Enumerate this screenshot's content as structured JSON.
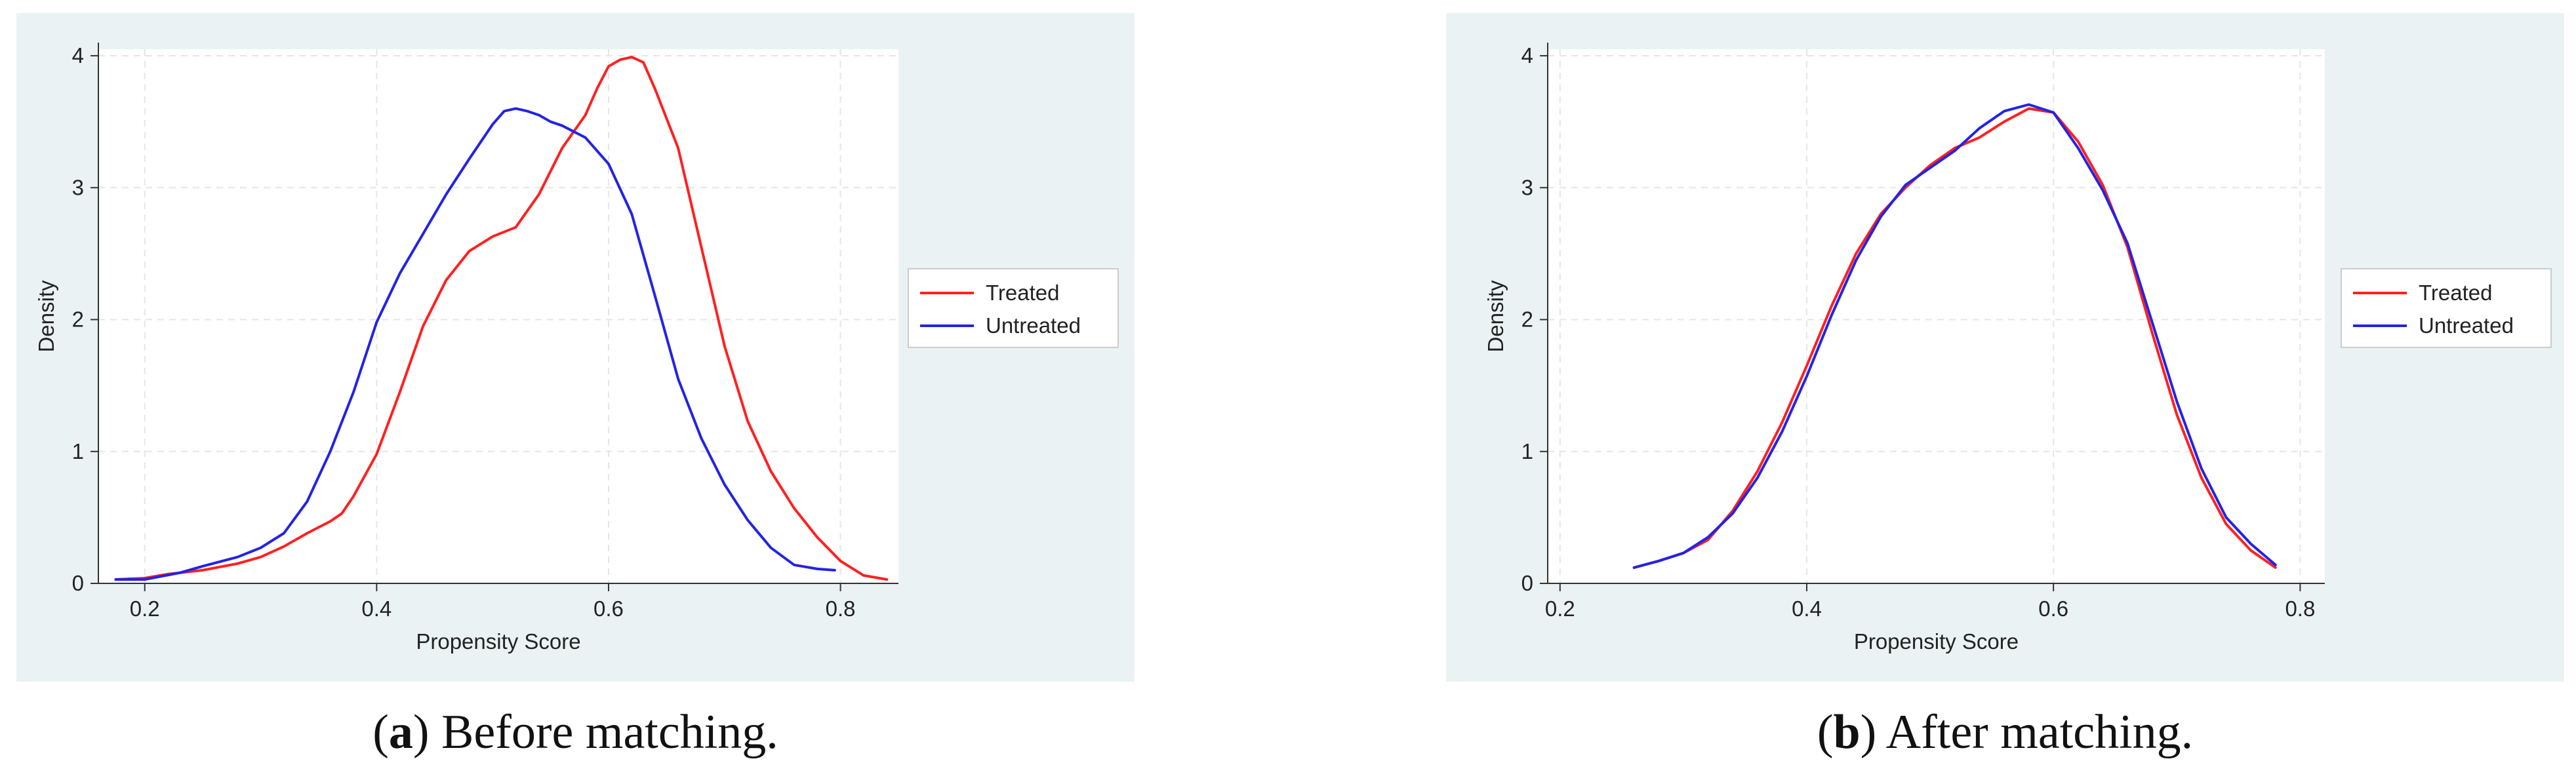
{
  "colors": {
    "treated": "#ff2020",
    "untreated": "#2323e6",
    "panel_bg": "#eaf2f3",
    "grid": "#e6e6e6"
  },
  "chart_data": [
    {
      "type": "line",
      "title": "",
      "xlabel": "Propensity Score",
      "ylabel": "Density",
      "xlim": [
        0.16,
        0.85
      ],
      "ylim": [
        0,
        4.05
      ],
      "xticks": [
        0.2,
        0.4,
        0.6,
        0.8
      ],
      "xtick_labels": [
        "0.2",
        "0.4",
        "0.6",
        "0.8"
      ],
      "yticks": [
        0,
        1,
        2,
        3,
        4
      ],
      "ytick_labels": [
        "0",
        "1",
        "2",
        "3",
        "4"
      ],
      "grid": true,
      "legend_position": "right",
      "caption_label": "a",
      "caption_text": ") Before matching.",
      "caption_open": "(",
      "series": [
        {
          "name": "Treated",
          "color": "#ff2020",
          "x": [
            0.175,
            0.2,
            0.22,
            0.25,
            0.28,
            0.3,
            0.32,
            0.34,
            0.36,
            0.37,
            0.38,
            0.4,
            0.42,
            0.44,
            0.46,
            0.48,
            0.5,
            0.52,
            0.54,
            0.56,
            0.58,
            0.59,
            0.6,
            0.61,
            0.62,
            0.63,
            0.64,
            0.66,
            0.68,
            0.7,
            0.72,
            0.74,
            0.76,
            0.78,
            0.8,
            0.82,
            0.84
          ],
          "y": [
            0.03,
            0.04,
            0.07,
            0.1,
            0.15,
            0.2,
            0.28,
            0.38,
            0.47,
            0.53,
            0.66,
            0.98,
            1.45,
            1.95,
            2.3,
            2.52,
            2.63,
            2.7,
            2.95,
            3.3,
            3.55,
            3.75,
            3.92,
            3.97,
            3.99,
            3.95,
            3.75,
            3.3,
            2.55,
            1.8,
            1.23,
            0.85,
            0.57,
            0.35,
            0.17,
            0.06,
            0.03
          ]
        },
        {
          "name": "Untreated",
          "color": "#2323e6",
          "x": [
            0.175,
            0.2,
            0.23,
            0.25,
            0.28,
            0.3,
            0.32,
            0.34,
            0.36,
            0.38,
            0.4,
            0.42,
            0.44,
            0.46,
            0.48,
            0.5,
            0.51,
            0.52,
            0.53,
            0.54,
            0.55,
            0.56,
            0.58,
            0.6,
            0.62,
            0.64,
            0.66,
            0.68,
            0.7,
            0.72,
            0.74,
            0.76,
            0.78,
            0.795
          ],
          "y": [
            0.03,
            0.03,
            0.08,
            0.13,
            0.2,
            0.27,
            0.38,
            0.62,
            1.0,
            1.45,
            1.98,
            2.35,
            2.65,
            2.95,
            3.22,
            3.48,
            3.58,
            3.6,
            3.58,
            3.55,
            3.5,
            3.47,
            3.38,
            3.18,
            2.8,
            2.18,
            1.55,
            1.1,
            0.75,
            0.48,
            0.27,
            0.14,
            0.11,
            0.1
          ]
        }
      ]
    },
    {
      "type": "line",
      "title": "",
      "xlabel": "Propensity Score",
      "ylabel": "Density",
      "xlim": [
        0.19,
        0.82
      ],
      "ylim": [
        0,
        4.05
      ],
      "xticks": [
        0.2,
        0.4,
        0.6,
        0.8
      ],
      "xtick_labels": [
        "0.2",
        "0.4",
        "0.6",
        "0.8"
      ],
      "yticks": [
        0,
        1,
        2,
        3,
        4
      ],
      "ytick_labels": [
        "0",
        "1",
        "2",
        "3",
        "4"
      ],
      "grid": true,
      "legend_position": "right",
      "caption_label": "b",
      "caption_text": ") After matching.",
      "caption_open": "(",
      "series": [
        {
          "name": "Treated",
          "color": "#ff2020",
          "x": [
            0.26,
            0.28,
            0.3,
            0.32,
            0.34,
            0.36,
            0.38,
            0.4,
            0.42,
            0.44,
            0.46,
            0.48,
            0.5,
            0.52,
            0.54,
            0.56,
            0.58,
            0.6,
            0.62,
            0.64,
            0.66,
            0.68,
            0.7,
            0.72,
            0.74,
            0.76,
            0.78
          ],
          "y": [
            0.12,
            0.17,
            0.23,
            0.33,
            0.55,
            0.85,
            1.22,
            1.65,
            2.1,
            2.5,
            2.8,
            3.0,
            3.17,
            3.3,
            3.38,
            3.5,
            3.6,
            3.57,
            3.35,
            3.02,
            2.55,
            1.9,
            1.28,
            0.8,
            0.45,
            0.25,
            0.12
          ]
        },
        {
          "name": "Untreated",
          "color": "#2323e6",
          "x": [
            0.26,
            0.28,
            0.3,
            0.32,
            0.34,
            0.36,
            0.38,
            0.4,
            0.42,
            0.44,
            0.46,
            0.48,
            0.5,
            0.52,
            0.54,
            0.56,
            0.58,
            0.6,
            0.62,
            0.64,
            0.66,
            0.68,
            0.7,
            0.72,
            0.74,
            0.76,
            0.78
          ],
          "y": [
            0.12,
            0.17,
            0.23,
            0.35,
            0.53,
            0.8,
            1.15,
            1.57,
            2.03,
            2.45,
            2.78,
            3.02,
            3.15,
            3.28,
            3.45,
            3.58,
            3.63,
            3.57,
            3.3,
            2.98,
            2.58,
            1.98,
            1.38,
            0.87,
            0.5,
            0.3,
            0.14
          ]
        }
      ]
    }
  ]
}
